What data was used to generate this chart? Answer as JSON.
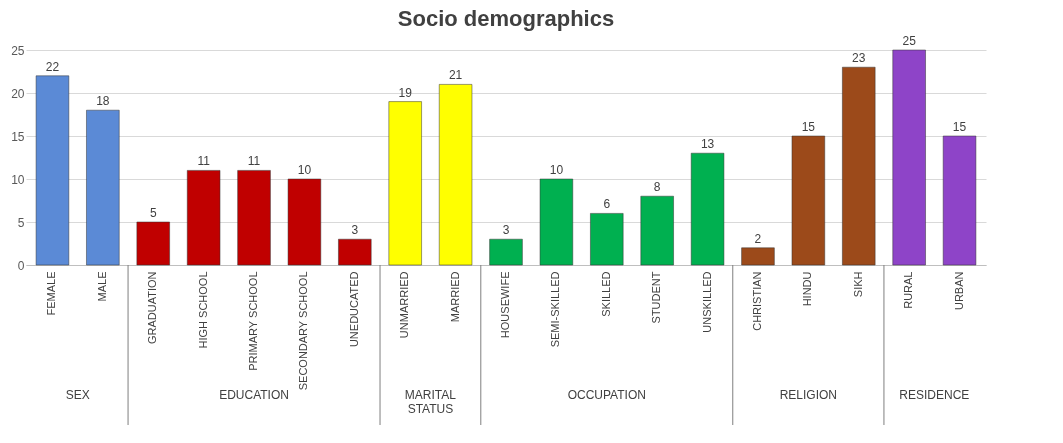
{
  "chart_data": {
    "type": "bar",
    "title": "Socio demographics",
    "categories": [
      "FEMALE",
      "MALE",
      "GRADUATION",
      "HIGH SCHOOL",
      "PRIMARY SCHOOL",
      "SECONDARY SCHOOL",
      "UNEDUCATED",
      "UNMARRIED",
      "MARRIED",
      "HOUSEWIFE",
      "SEMI-SKILLED",
      "SKILLED",
      "STUDENT",
      "UNSKILLED",
      "CHRISTIAN",
      "HINDU",
      "SIKH",
      "RURAL",
      "URBAN"
    ],
    "values": [
      22,
      18,
      5,
      11,
      11,
      10,
      3,
      19,
      21,
      3,
      10,
      6,
      8,
      13,
      2,
      15,
      23,
      25,
      15
    ],
    "colors": [
      "#5b8ad6",
      "#5b8ad6",
      "#c00000",
      "#c00000",
      "#c00000",
      "#c00000",
      "#c00000",
      "#ffff00",
      "#ffff00",
      "#00b050",
      "#00b050",
      "#00b050",
      "#00b050",
      "#00b050",
      "#9c4a1a",
      "#9c4a1a",
      "#9c4a1a",
      "#8e44c8",
      "#8e44c8"
    ],
    "annotations": [
      "SEX",
      "EDUCATION",
      "MARITAL STATUS",
      "OCCUPATION",
      "RELIGION",
      "RESIDENCE"
    ],
    "ylim": [
      0,
      25
    ],
    "yticks": [
      0,
      5,
      10,
      15,
      20,
      25
    ],
    "grid": "y",
    "data_labels": true
  }
}
